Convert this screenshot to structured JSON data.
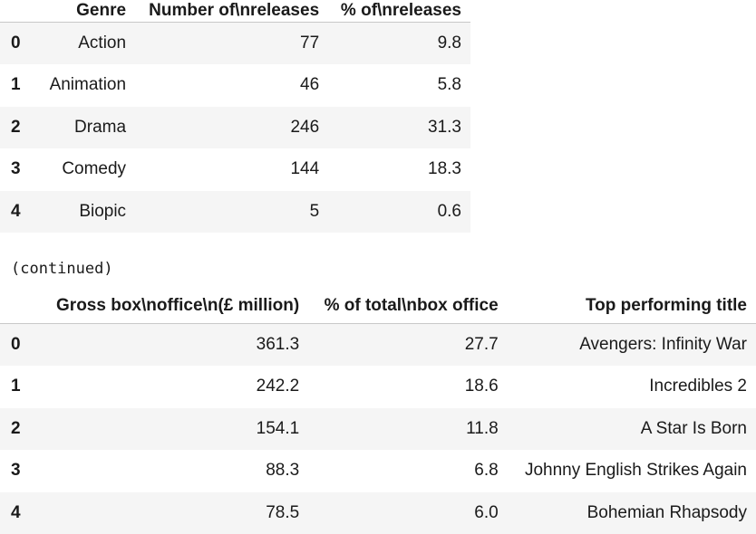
{
  "table1": {
    "headers": [
      "",
      "Genre",
      "Number of\\nreleases",
      "% of\\nreleases"
    ],
    "rows": [
      [
        "0",
        "Action",
        "77",
        "9.8"
      ],
      [
        "1",
        "Animation",
        "46",
        "5.8"
      ],
      [
        "2",
        "Drama",
        "246",
        "31.3"
      ],
      [
        "3",
        "Comedy",
        "144",
        "18.3"
      ],
      [
        "4",
        "Biopic",
        "5",
        "0.6"
      ]
    ]
  },
  "continued_label": "(continued)",
  "table2": {
    "headers": [
      "",
      "Gross box\\noffice\\n(£ million)",
      "% of total\\nbox office",
      "Top performing title"
    ],
    "rows": [
      [
        "0",
        "361.3",
        "27.7",
        "Avengers: Infinity War"
      ],
      [
        "1",
        "242.2",
        "18.6",
        "Incredibles 2"
      ],
      [
        "2",
        "154.1",
        "11.8",
        "A Star Is Born"
      ],
      [
        "3",
        "88.3",
        "6.8",
        "Johnny English Strikes Again"
      ],
      [
        "4",
        "78.5",
        "6.0",
        "Bohemian Rhapsody"
      ]
    ]
  }
}
